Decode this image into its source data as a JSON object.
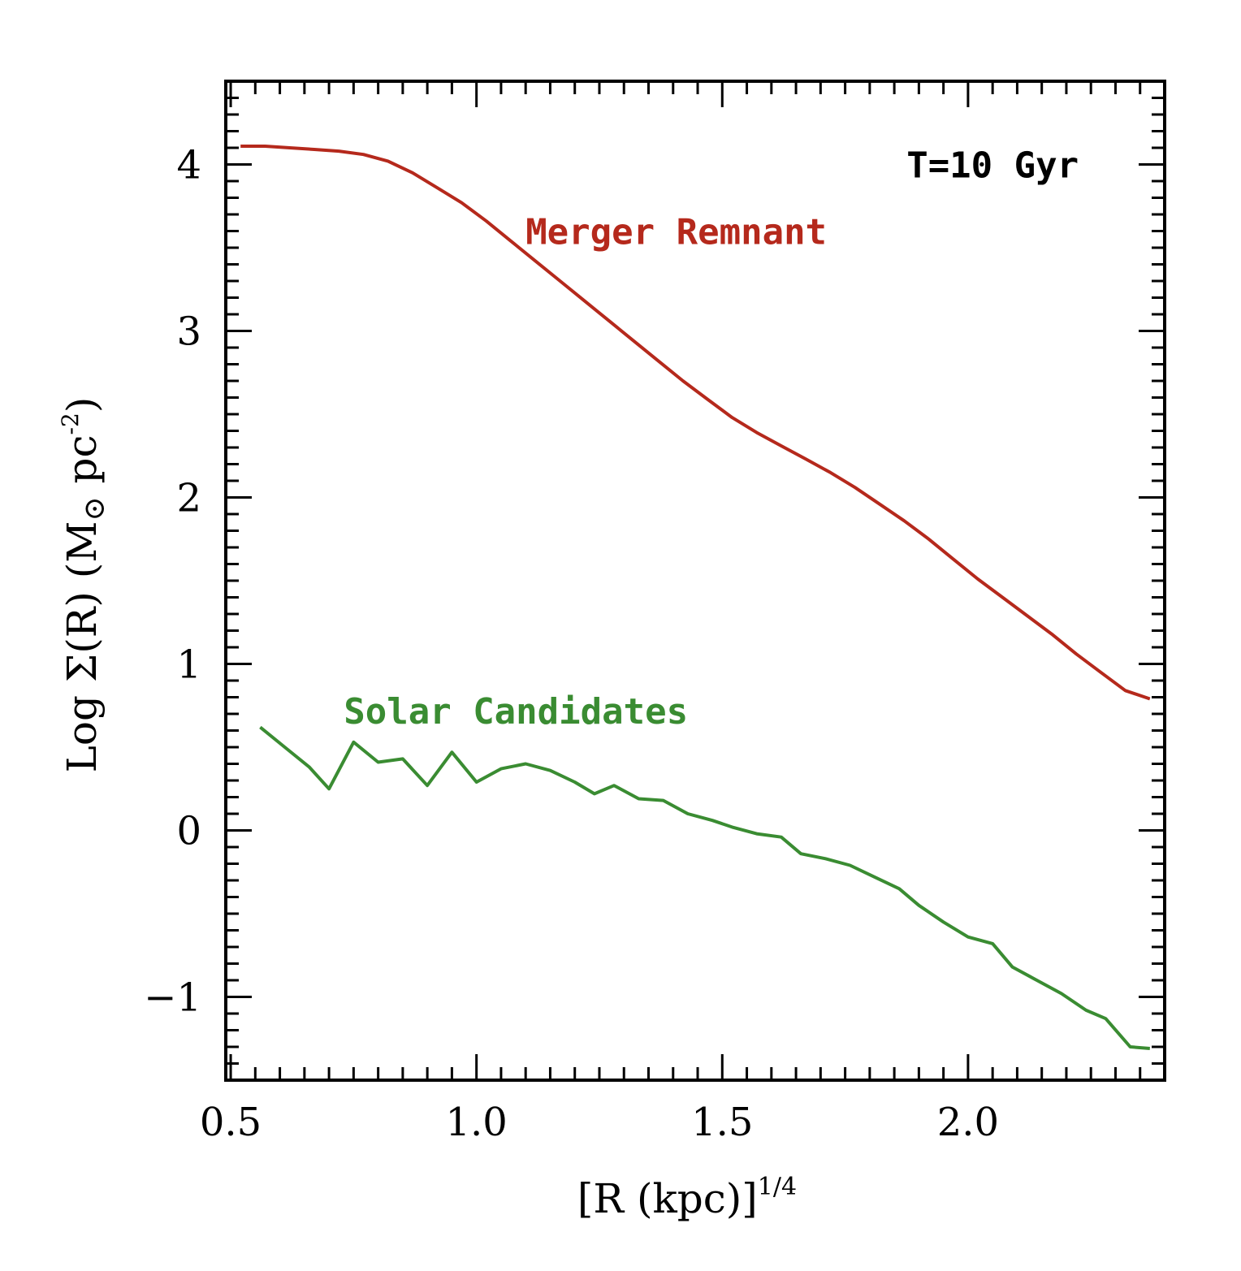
{
  "chart_data": {
    "type": "line",
    "xlabel_main": "[R (kpc)]",
    "xlabel_sup": "1/4",
    "ylabel_main": "Log Σ(R) (M",
    "ylabel_sun": "⊙",
    "ylabel_rest": " pc",
    "ylabel_sup": "-2",
    "ylabel_close": ")",
    "xlim": [
      0.49,
      2.4
    ],
    "ylim": [
      -1.5,
      4.5
    ],
    "x_ticks": [
      {
        "value": 0.5,
        "label": "0.5"
      },
      {
        "value": 1.0,
        "label": "1.0"
      },
      {
        "value": 1.5,
        "label": "1.5"
      },
      {
        "value": 2.0,
        "label": "2.0"
      }
    ],
    "y_ticks": [
      {
        "value": -1,
        "label": "−1"
      },
      {
        "value": 0,
        "label": "0"
      },
      {
        "value": 1,
        "label": "1"
      },
      {
        "value": 2,
        "label": "2"
      },
      {
        "value": 3,
        "label": "3"
      },
      {
        "value": 4,
        "label": "4"
      }
    ],
    "x_minor_step": 0.05,
    "y_minor_step": 0.1,
    "annotations": [
      {
        "text": "T=10 Gyr",
        "x": 2.05,
        "y": 4.0,
        "color": "#000000"
      },
      {
        "text": "Merger Remnant",
        "x": 1.1,
        "y": 3.6,
        "color": "#b5291c"
      },
      {
        "text": "Solar Candidates",
        "x": 0.73,
        "y": 0.72,
        "color": "#3a8c32"
      }
    ],
    "series": [
      {
        "name": "Merger Remnant",
        "color": "#b5291c",
        "x": [
          0.52,
          0.57,
          0.62,
          0.67,
          0.72,
          0.77,
          0.82,
          0.87,
          0.92,
          0.97,
          1.02,
          1.07,
          1.12,
          1.17,
          1.22,
          1.27,
          1.32,
          1.37,
          1.42,
          1.47,
          1.52,
          1.57,
          1.62,
          1.67,
          1.72,
          1.77,
          1.82,
          1.87,
          1.92,
          1.97,
          2.02,
          2.07,
          2.12,
          2.17,
          2.22,
          2.27,
          2.32,
          2.37
        ],
        "y": [
          4.11,
          4.11,
          4.1,
          4.09,
          4.08,
          4.06,
          4.02,
          3.95,
          3.86,
          3.77,
          3.66,
          3.54,
          3.42,
          3.3,
          3.18,
          3.06,
          2.94,
          2.82,
          2.7,
          2.59,
          2.48,
          2.39,
          2.31,
          2.23,
          2.15,
          2.06,
          1.96,
          1.86,
          1.75,
          1.63,
          1.51,
          1.4,
          1.29,
          1.18,
          1.06,
          0.95,
          0.84,
          0.79
        ]
      },
      {
        "name": "Solar Candidates",
        "color": "#3a8c32",
        "x": [
          0.56,
          0.61,
          0.66,
          0.7,
          0.75,
          0.8,
          0.85,
          0.9,
          0.95,
          1.0,
          1.05,
          1.1,
          1.15,
          1.2,
          1.24,
          1.28,
          1.33,
          1.38,
          1.43,
          1.48,
          1.52,
          1.57,
          1.62,
          1.66,
          1.71,
          1.76,
          1.81,
          1.86,
          1.9,
          1.95,
          2.0,
          2.05,
          2.09,
          2.14,
          2.19,
          2.24,
          2.28,
          2.33,
          2.37
        ],
        "y": [
          0.62,
          0.5,
          0.38,
          0.25,
          0.53,
          0.41,
          0.43,
          0.27,
          0.47,
          0.29,
          0.37,
          0.4,
          0.36,
          0.29,
          0.22,
          0.27,
          0.19,
          0.18,
          0.1,
          0.06,
          0.02,
          -0.02,
          -0.04,
          -0.14,
          -0.17,
          -0.21,
          -0.28,
          -0.35,
          -0.45,
          -0.55,
          -0.64,
          -0.68,
          -0.82,
          -0.9,
          -0.98,
          -1.08,
          -1.13,
          -1.3,
          -1.31
        ]
      }
    ]
  }
}
